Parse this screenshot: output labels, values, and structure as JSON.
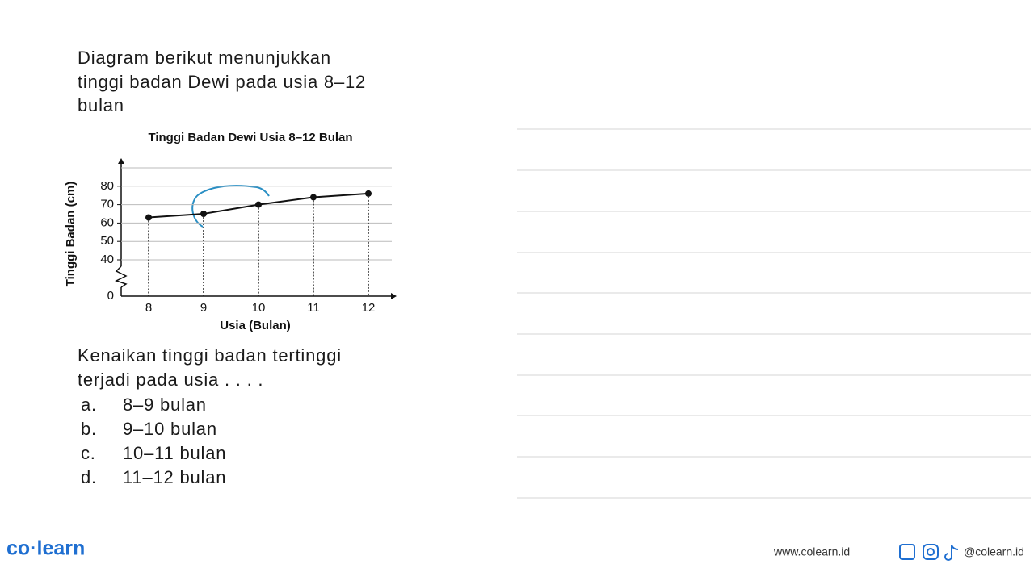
{
  "question": {
    "intro": [
      "Diagram berikut menunjukkan",
      "tinggi badan Dewi pada usia 8–12",
      "bulan"
    ],
    "prompt": [
      "Kenaikan tinggi badan tertinggi",
      "terjadi pada usia . . . ."
    ],
    "options": [
      {
        "letter": "a.",
        "text": "8–9 bulan"
      },
      {
        "letter": "b.",
        "text": "9–10 bulan"
      },
      {
        "letter": "c.",
        "text": "10–11 bulan"
      },
      {
        "letter": "d.",
        "text": "11–12 bulan"
      }
    ]
  },
  "chart_data": {
    "type": "line",
    "title": "Tinggi Badan Dewi Usia 8–12 Bulan",
    "x_label": "Usia (Bulan)",
    "y_label": "Tinggi Badan (cm)",
    "x": [
      8,
      9,
      10,
      11,
      12
    ],
    "xlim": [
      7.5,
      12.5
    ],
    "xticks": [
      8,
      9,
      10,
      11,
      12
    ],
    "values": [
      63,
      65,
      70,
      74,
      76
    ],
    "color": "#111111",
    "ylim": [
      0,
      90
    ],
    "yticks": [
      0,
      40,
      50,
      60,
      70,
      80
    ],
    "axis_break": true,
    "grid": true
  },
  "footer": {
    "brand": "co·learn",
    "website": "www.colearn.id",
    "handle": "@colearn.id"
  }
}
